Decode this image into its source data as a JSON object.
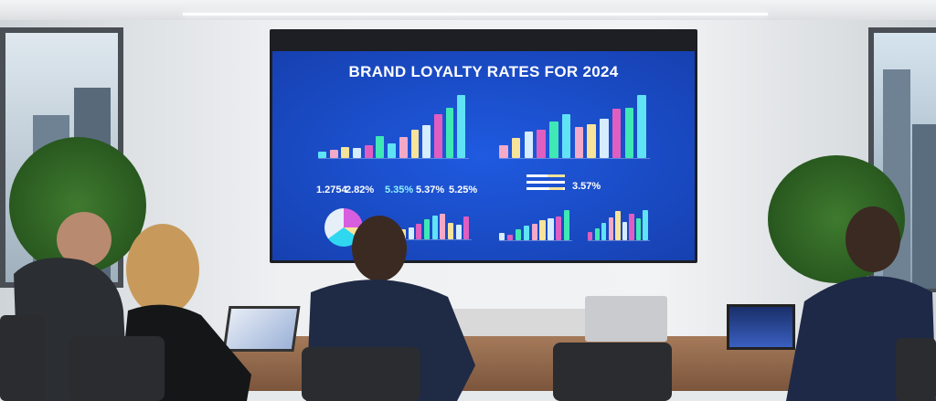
{
  "screen": {
    "title": "BRAND LOYALTY RATES FOR 2024",
    "stats": [
      "1.2754",
      "2.82%",
      "5.35%",
      "5.37%",
      "5.25%",
      "3.57%"
    ],
    "charts": [
      {
        "type": "bar",
        "values": [
          8,
          10,
          14,
          13,
          16,
          28,
          18,
          26,
          36,
          42,
          55,
          64,
          80
        ]
      },
      {
        "type": "bar",
        "values": [
          18,
          28,
          38,
          40,
          52,
          62,
          44,
          48,
          56,
          70,
          72,
          90
        ]
      },
      {
        "type": "bar",
        "values": [
          20,
          24,
          30,
          40,
          46,
          50,
          32,
          28,
          44
        ]
      },
      {
        "type": "bar",
        "values": [
          20,
          15,
          30,
          38,
          44,
          52,
          58,
          62,
          80
        ]
      },
      {
        "type": "bar",
        "values": [
          18,
          28,
          40,
          52,
          68,
          42,
          62,
          50,
          70
        ]
      }
    ],
    "colors": {
      "screen": "#1b4fd0",
      "bars": [
        "#5fe3f5",
        "#f3a9c8",
        "#f7e39a",
        "#d6ecff",
        "#e05ec0",
        "#3fe8b5"
      ]
    }
  }
}
